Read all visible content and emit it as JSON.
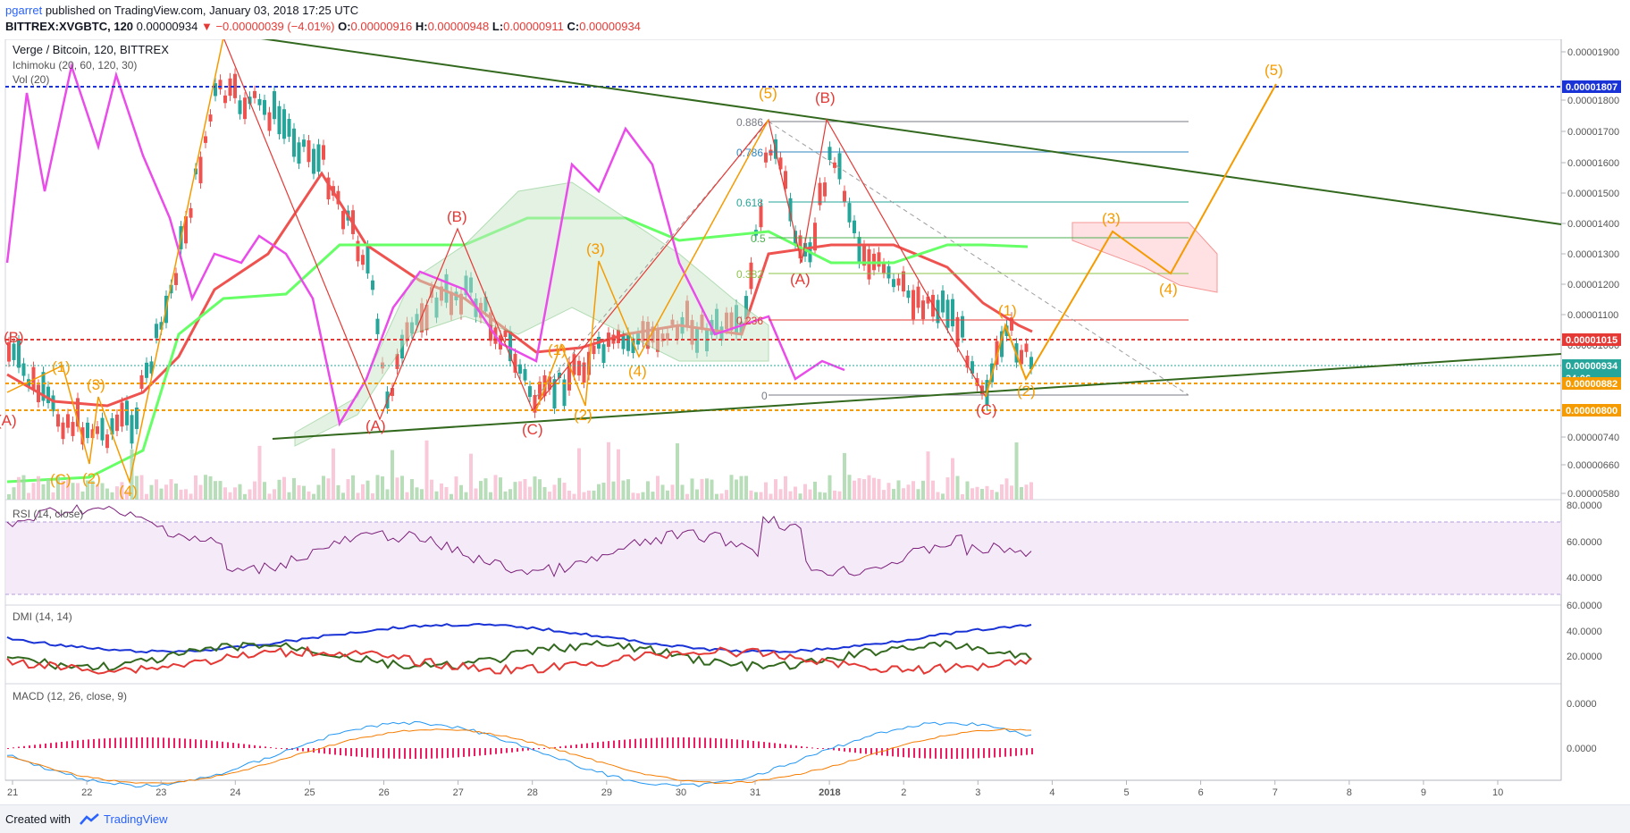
{
  "header": {
    "user": "pgarret",
    "published": "published on TradingView.com, January 03, 2018 17:25 UTC",
    "symbol": "BITTREX:XVGBTC, 120",
    "price": "0.00000934",
    "change": "▼ −0.00000039 (−4.01%)",
    "o_label": "O:",
    "o_value": "0.00000916",
    "h_label": "H:",
    "h_value": "0.00000948",
    "l_label": "L:",
    "l_value": "0.00000911",
    "c_label": "C:",
    "c_value": "0.00000934"
  },
  "legend": {
    "title": "Verge / Bitcoin, 120, BITTREX",
    "ichimoku": "Ichimoku (20, 60, 120, 30)",
    "vol": "Vol (20)"
  },
  "price_axis": {
    "ticks": [
      "0.00001900",
      "0.00001800",
      "0.00001700",
      "0.00001600",
      "0.00001500",
      "0.00001400",
      "0.00001300",
      "0.00001200",
      "0.00001100",
      "0.00001000",
      "0.00000740",
      "0.00000660",
      "0.00000580"
    ],
    "badges": [
      {
        "text": "0.00001807",
        "color": "#1a33d6"
      },
      {
        "text": "0.00001015",
        "color": "#e53935"
      },
      {
        "text": "0.00000934",
        "color": "#26a69a"
      },
      {
        "text": "34:06",
        "color": "#26a69a"
      },
      {
        "text": "0.00000882",
        "color": "#f59b00"
      },
      {
        "text": "0.00000800",
        "color": "#f59b00"
      }
    ]
  },
  "time_axis": [
    "21",
    "22",
    "23",
    "24",
    "25",
    "26",
    "27",
    "28",
    "29",
    "30",
    "31",
    "2018",
    "2",
    "3",
    "4",
    "5",
    "6",
    "7",
    "8",
    "9",
    "10"
  ],
  "fib": [
    "0.886",
    "0.786",
    "0.618",
    "0.5",
    "0.382",
    "0.236",
    "0"
  ],
  "wave_labels": {
    "A": "(A)",
    "B": "(B)",
    "C": "(C)",
    "w1": "(1)",
    "w2": "(2)",
    "w3": "(3)",
    "w4": "(4)",
    "w5": "(5)"
  },
  "rsi": {
    "label": "RSI (14, close)",
    "ticks": [
      "80.0000",
      "60.0000",
      "40.0000"
    ]
  },
  "dmi": {
    "label": "DMI (14, 14)",
    "ticks": [
      "60.0000",
      "40.0000",
      "20.0000"
    ]
  },
  "macd": {
    "label": "MACD (12, 26, close, 9)",
    "ticks": [
      "0.0000",
      "0.0000"
    ]
  },
  "footer": {
    "created": "Created with",
    "brand": "TradingView"
  },
  "colors": {
    "up": "#26a69a",
    "down": "#ef5350",
    "trend": "#33691e",
    "wave": "#f59b00",
    "red": "#e53935",
    "blue": "#1a33d6",
    "magenta": "#ea4cea"
  }
}
